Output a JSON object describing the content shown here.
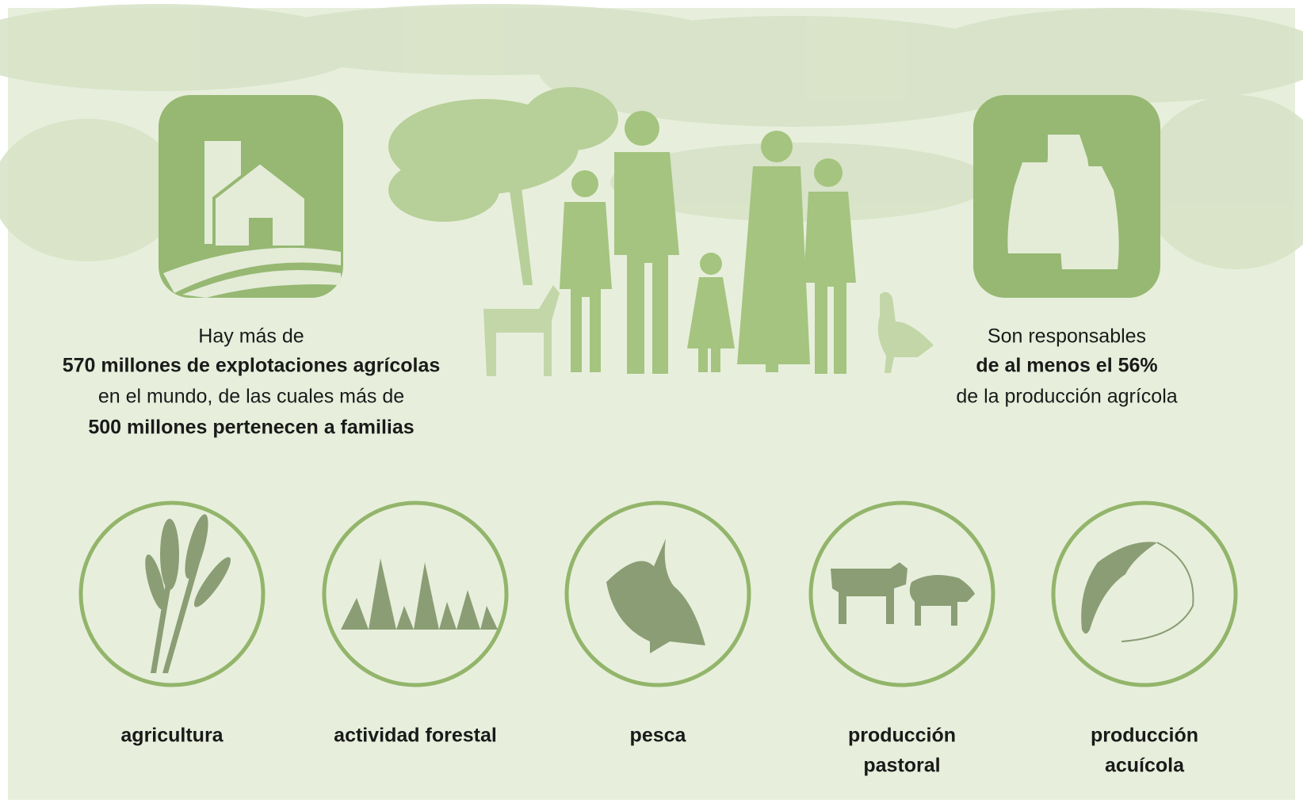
{
  "left_stat": {
    "lines": [
      "Hay más de",
      "570 millones de explotaciones agrícolas",
      "en el mundo, de las cuales más de",
      "500 millones pertenecen a familias"
    ]
  },
  "right_stat": {
    "lines": [
      "Son responsables",
      "de al menos el 56%",
      "de la producción agrícola"
    ]
  },
  "activities": [
    {
      "label_lines": [
        "agricultura"
      ]
    },
    {
      "label_lines": [
        "actividad forestal"
      ]
    },
    {
      "label_lines": [
        "pesca"
      ]
    },
    {
      "label_lines": [
        "producción",
        "pastoral"
      ]
    },
    {
      "label_lines": [
        "producción",
        "acuícola"
      ]
    }
  ]
}
